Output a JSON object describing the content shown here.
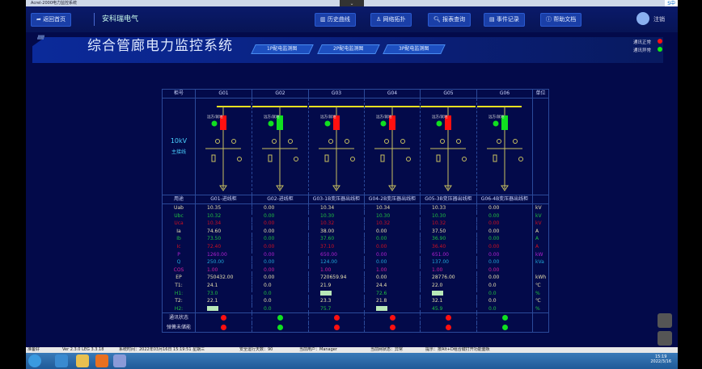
{
  "window_title": "Acrel-2000电力监控系统",
  "ime_label": "S中",
  "topbar": {
    "home": "返回首页",
    "brand": "安科瑞电气",
    "buttons": [
      "历史曲线",
      "网络拓扑",
      "报表查询",
      "事件记录",
      "帮助文档"
    ],
    "logout": "注销"
  },
  "banner": {
    "title": "综合管廊电力监控系统",
    "tabs": [
      "1P配电监测图",
      "2P配电监测图",
      "3P配电监测图"
    ],
    "comm_normal": "通讯正常",
    "comm_abnormal": "通讯异常"
  },
  "colors": {
    "red": "#ff1010",
    "green": "#10e020",
    "bus": "#e8e020"
  },
  "table": {
    "header_label": "柜号",
    "unit_label": "单位",
    "cabinets": [
      "G01",
      "G02",
      "G03",
      "G04",
      "G05",
      "G06"
    ],
    "bus_label": "10kV",
    "bus_sub": "主接线",
    "remote_label": "远方/就地",
    "breaker_state": [
      "closed",
      "open",
      "closed",
      "closed",
      "closed",
      "open"
    ],
    "purpose_label": "用途",
    "purposes": [
      "G01-进线柜",
      "G02-进线柜",
      "G03-1B变压器出线柜",
      "G04-2B变压器出线柜",
      "G05-3B变压器出线柜",
      "G06-4B变压器出线柜"
    ],
    "rows": [
      {
        "name": "Uab",
        "color": "#e8e0b0",
        "values": [
          "10.35",
          "0.00",
          "10.34",
          "10.34",
          "10.33",
          "0.00"
        ],
        "unit": "kV"
      },
      {
        "name": "Ubc",
        "color": "#20c040",
        "values": [
          "10.32",
          "0.00",
          "10.30",
          "10.30",
          "10.30",
          "0.00"
        ],
        "unit": "kV"
      },
      {
        "name": "Uca",
        "color": "#d01020",
        "values": [
          "10.34",
          "0.00",
          "10.32",
          "10.32",
          "10.32",
          "0.00"
        ],
        "unit": "kV"
      },
      {
        "name": "Ia",
        "color": "#e8e0b0",
        "values": [
          "74.60",
          "0.00",
          "38.00",
          "0.00",
          "37.50",
          "0.00"
        ],
        "unit": "A"
      },
      {
        "name": "Ib",
        "color": "#20c040",
        "values": [
          "73.50",
          "0.00",
          "37.60",
          "0.00",
          "36.90",
          "0.00"
        ],
        "unit": "A"
      },
      {
        "name": "Ic",
        "color": "#d01020",
        "values": [
          "72.40",
          "0.00",
          "37.10",
          "0.00",
          "36.40",
          "0.00"
        ],
        "unit": "A"
      },
      {
        "name": "P",
        "color": "#b020d0",
        "values": [
          "1260.00",
          "0.00",
          "650.00",
          "0.00",
          "651.00",
          "0.00"
        ],
        "unit": "kW"
      },
      {
        "name": "Q",
        "color": "#20a8d8",
        "values": [
          "250.00",
          "0.00",
          "124.00",
          "0.00",
          "137.00",
          "0.00"
        ],
        "unit": "kVa"
      },
      {
        "name": "COS",
        "color": "#d020a0",
        "values": [
          "1.00",
          "0.00",
          "1.00",
          "1.00",
          "1.00",
          "0.00"
        ],
        "unit": ""
      },
      {
        "name": "EP",
        "color": "#e8e0b0",
        "values": [
          "750432.00",
          "0.00",
          "720659.94",
          "0.00",
          "28776.00",
          "0.00"
        ],
        "unit": "kWh"
      },
      {
        "name": "T1:",
        "color": "#e8e0b0",
        "values": [
          "24.1",
          "0.0",
          "21.9",
          "24.4",
          "22.0",
          "0.0"
        ],
        "unit": "℃"
      },
      {
        "name": "H1:",
        "color": "#20c040",
        "values": [
          "73.0",
          "0.0",
          null,
          "72.6",
          null,
          "0.0"
        ],
        "unit": "%"
      },
      {
        "name": "T2:",
        "color": "#e8e0b0",
        "values": [
          "22.1",
          "0.0",
          "23.3",
          "21.8",
          "32.1",
          "0.0"
        ],
        "unit": "℃"
      },
      {
        "name": "H2:",
        "color": "#20c040",
        "values": [
          null,
          "0.0",
          "75.7",
          null,
          "45.9",
          "0.0"
        ],
        "unit": "%"
      }
    ],
    "status_rows": [
      {
        "name": "通讯状态",
        "states": [
          "red",
          "green",
          "red",
          "red",
          "red",
          "green"
        ]
      },
      {
        "name": "弹簧未储能",
        "states": [
          "red",
          "green",
          "red",
          "red",
          "red",
          "green"
        ]
      }
    ]
  },
  "statusbar": [
    "准备好",
    "Ver 2.3.0 LEG 3.3.18",
    "系统时间：2022年03月16日 15:19:51 星期三",
    "安全运行天数：90",
    "当前用户：Manager",
    "当前网状态：异常",
    "提示：按Alt+D组合键打开功能面板"
  ],
  "clock": {
    "time": "15:19",
    "date": "2022/3/16"
  }
}
